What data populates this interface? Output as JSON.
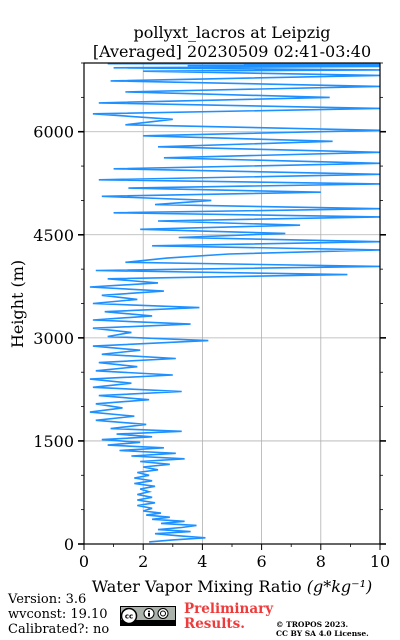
{
  "chart_data": {
    "type": "line",
    "title": "pollyxt_lacros at Leipzig",
    "subtitle": "[Averaged] 20230509 02:41-03:40",
    "xlabel": "Water Vapor Mixing Ratio",
    "xlabel_units": "(g*kg⁻¹)",
    "ylabel": "Height (m)",
    "xlim": [
      0,
      10
    ],
    "ylim": [
      0,
      7000
    ],
    "xticks": [
      0,
      2,
      4,
      6,
      8,
      10
    ],
    "yticks": [
      0,
      1500,
      3000,
      4500,
      6000
    ],
    "grid": true,
    "color": "#1e90ff",
    "series": [
      {
        "x": [
          2.2,
          3.0,
          4.1,
          3.2,
          2.4,
          3.6,
          2.5,
          3.3,
          3.8,
          2.6,
          3.4,
          2.3,
          2.9,
          2.1,
          2.6,
          2.0,
          2.3,
          1.8,
          2.4,
          1.8,
          2.3,
          1.8,
          2.2,
          1.9,
          2.4,
          1.7,
          2.3,
          1.7,
          2.2,
          1.8,
          2.5,
          2.0,
          2.9,
          1.9,
          3.4,
          1.6,
          3.1,
          1.2,
          2.7,
          0.8,
          1.9,
          0.6,
          2.3,
          1.1,
          3.3,
          0.9,
          2.1,
          0.4,
          1.7,
          0.2,
          1.3,
          0.4,
          2.2,
          0.5,
          3.3,
          0.3,
          1.6,
          0.2,
          3.0,
          0.4,
          1.8,
          0.5,
          3.1,
          0.6,
          1.9,
          0.3,
          4.2,
          0.8,
          1.6,
          0.3,
          3.6,
          0.3,
          2.3,
          0.7,
          3.9,
          0.3,
          1.8,
          0.6,
          2.7,
          0.2,
          2.5,
          0.8,
          8.9,
          0.4,
          10.0,
          1.4,
          2.8,
          4.9,
          10.0,
          2.3,
          10.0,
          3.2,
          6.8,
          1.9,
          7.3,
          2.5,
          10.0,
          1.0,
          10.0,
          2.4,
          4.3,
          0.6,
          8.0,
          1.5,
          10.0,
          0.5,
          10.0,
          1.0,
          10.0,
          2.7,
          10.0,
          2.5,
          8.4,
          2.0,
          10.0,
          1.4,
          3.0,
          0.3,
          10.0,
          0.5,
          8.3,
          1.4,
          10.0,
          0.9,
          10.0,
          2.0,
          10.0,
          1.0,
          10.0,
          3.5,
          10.0,
          5.4,
          10.0,
          0.8
        ],
        "y": [
          30,
          60,
          90,
          120,
          150,
          180,
          210,
          240,
          270,
          300,
          330,
          360,
          390,
          420,
          450,
          480,
          520,
          560,
          600,
          640,
          680,
          720,
          760,
          800,
          840,
          880,
          920,
          960,
          1000,
          1040,
          1080,
          1120,
          1160,
          1200,
          1240,
          1280,
          1320,
          1360,
          1400,
          1440,
          1480,
          1520,
          1560,
          1600,
          1640,
          1680,
          1740,
          1800,
          1860,
          1920,
          1980,
          2040,
          2100,
          2160,
          2220,
          2280,
          2340,
          2400,
          2460,
          2520,
          2580,
          2640,
          2700,
          2760,
          2820,
          2880,
          2960,
          3020,
          3080,
          3140,
          3200,
          3260,
          3320,
          3380,
          3440,
          3500,
          3560,
          3620,
          3680,
          3740,
          3800,
          3860,
          3920,
          3980,
          4040,
          4100,
          4160,
          4220,
          4280,
          4340,
          4400,
          4460,
          4520,
          4580,
          4640,
          4700,
          4760,
          4820,
          4880,
          4940,
          5000,
          5060,
          5120,
          5180,
          5240,
          5300,
          5380,
          5460,
          5540,
          5620,
          5700,
          5780,
          5860,
          5940,
          6020,
          6100,
          6180,
          6260,
          6340,
          6420,
          6500,
          6580,
          6660,
          6740,
          6820,
          6880,
          6900,
          6930,
          6950,
          6960,
          6970,
          6980,
          6985,
          6990
        ]
      }
    ]
  },
  "footer": {
    "version": "Version: 3.6",
    "wvconst": "wvconst:  19.10",
    "calibrated": "Calibrated?: no",
    "preliminary_line1": "Preliminary",
    "preliminary_line2": "Results.",
    "copyright_line1": "© TROPOS 2023.",
    "copyright_line2": "CC BY SA 4.0 License."
  }
}
